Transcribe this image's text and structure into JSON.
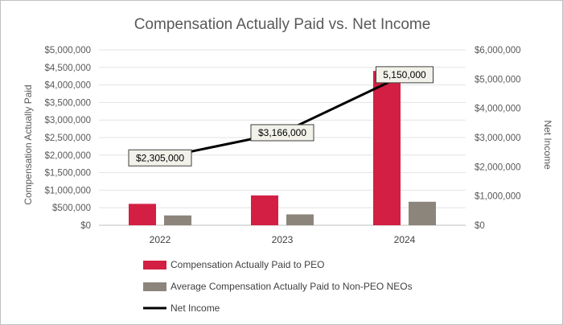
{
  "chart_data": {
    "type": "bar",
    "title": "Compensation Actually Paid vs. Net Income",
    "categories": [
      "2022",
      "2023",
      "2024"
    ],
    "y_left": {
      "label": "Compensation Actually Paid",
      "min": 0,
      "max": 5000000,
      "step": 500000,
      "tick_labels": [
        "$0",
        "$500,000",
        "$1,000,000",
        "$1,500,000",
        "$2,000,000",
        "$2,500,000",
        "$3,000,000",
        "$3,500,000",
        "$4,000,000",
        "$4,500,000",
        "$5,000,000"
      ]
    },
    "y_right": {
      "label": "Net Income",
      "min": 0,
      "max": 6000000,
      "step": 1000000,
      "tick_labels": [
        "$0",
        "$1,000,000",
        "$2,000,000",
        "$3,000,000",
        "$4,000,000",
        "$5,000,000",
        "$6,000,000"
      ]
    },
    "series": [
      {
        "name": "Compensation Actually Paid to PEO",
        "kind": "bar",
        "axis": "left",
        "color": "#d21f43",
        "values": [
          610000,
          850000,
          4400000
        ]
      },
      {
        "name": "Average Compensation Actually Paid to Non-PEO NEOs",
        "kind": "bar",
        "axis": "left",
        "color": "#8c857b",
        "values": [
          280000,
          310000,
          670000
        ]
      },
      {
        "name": "Net Income",
        "kind": "line",
        "axis": "right",
        "color": "#000000",
        "values": [
          2305000,
          3166000,
          5150000
        ],
        "data_labels": [
          "$2,305,000",
          "$3,166,000",
          "5,150,000"
        ]
      }
    ],
    "grid": true,
    "legend_position": "bottom"
  }
}
